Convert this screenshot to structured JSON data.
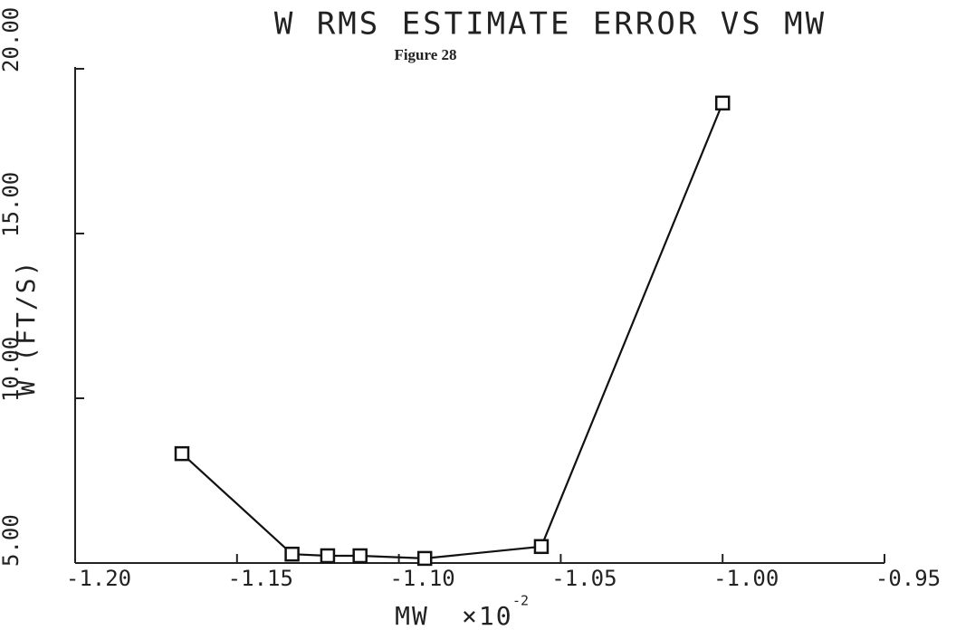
{
  "chart_data": {
    "type": "line",
    "title": "W RMS ESTIMATE ERROR VS MW",
    "subtitle": "Figure 28",
    "xlabel": "MW",
    "x_scale_label": "×10",
    "x_scale_exponent": "-2",
    "ylabel": "W (FT/S)",
    "x": [
      -1.167,
      -1.133,
      -1.122,
      -1.112,
      -1.092,
      -1.056,
      -1.0
    ],
    "series": [
      {
        "color": "#111111",
        "values": [
          8.32,
          5.27,
          5.22,
          5.22,
          5.14,
          5.5,
          18.96
        ]
      }
    ],
    "xlim": [
      -1.2,
      -0.95
    ],
    "xticks": [
      {
        "value": -1.2,
        "label": "-1.20"
      },
      {
        "value": -1.15,
        "label": "-1.15"
      },
      {
        "value": -1.1,
        "label": "-1.10"
      },
      {
        "value": -1.05,
        "label": "-1.05"
      },
      {
        "value": -1.0,
        "label": "-1.00"
      },
      {
        "value": -0.95,
        "label": "-0.95"
      }
    ],
    "ylim": [
      5,
      20
    ],
    "yticks": [
      {
        "value": 5,
        "label": "5.00"
      },
      {
        "value": 10,
        "label": "10.00"
      },
      {
        "value": 15,
        "label": "15.00"
      },
      {
        "value": 20,
        "label": "20.00"
      }
    ],
    "marker": "square"
  }
}
